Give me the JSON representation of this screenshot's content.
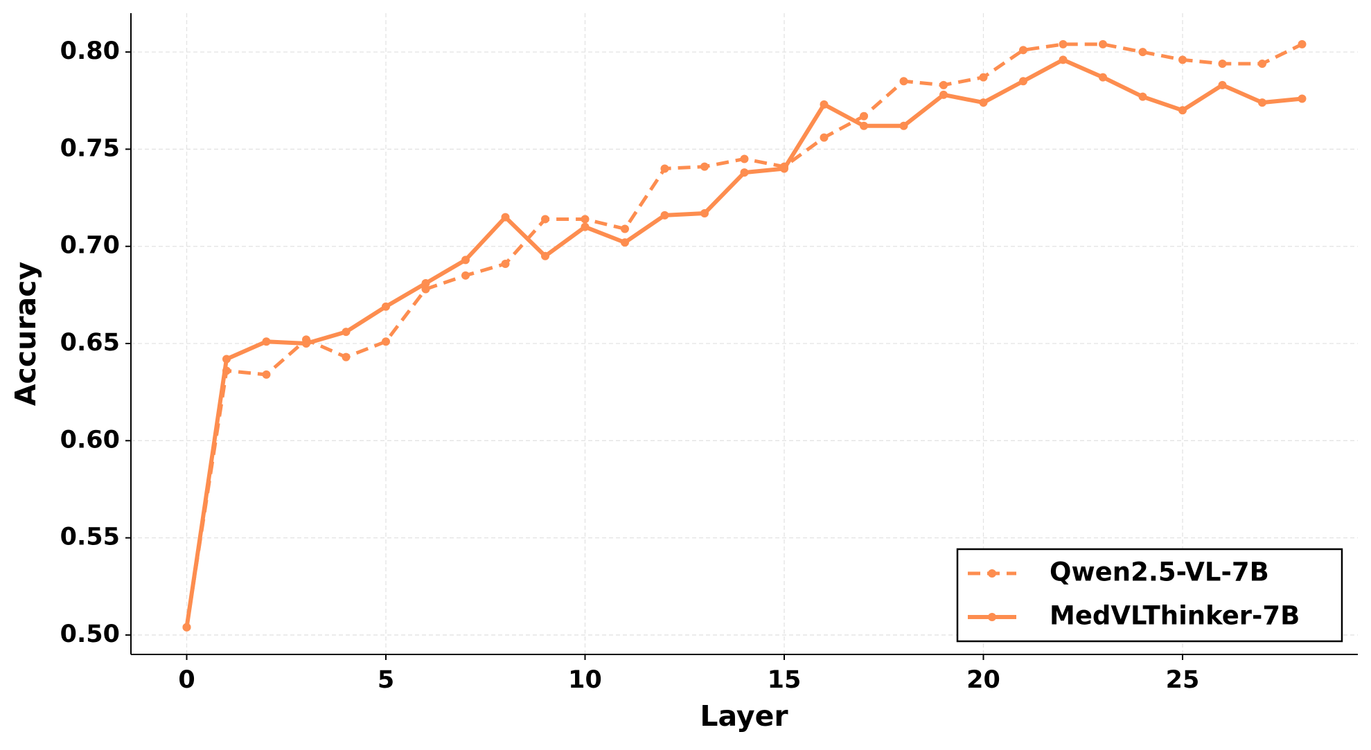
{
  "chart_data": {
    "type": "line",
    "x_label": "Layer",
    "y_label": "Accuracy",
    "x": [
      0,
      1,
      2,
      3,
      4,
      5,
      6,
      7,
      8,
      9,
      10,
      11,
      12,
      13,
      14,
      15,
      16,
      17,
      18,
      19,
      20,
      21,
      22,
      23,
      24,
      25,
      26,
      27,
      28
    ],
    "series": [
      {
        "name": "Qwen2.5-VL-7B",
        "color": "#fd8d4f",
        "dashed": true,
        "values": [
          0.504,
          0.636,
          0.634,
          0.652,
          0.643,
          0.651,
          0.678,
          0.685,
          0.691,
          0.714,
          0.714,
          0.709,
          0.74,
          0.741,
          0.745,
          0.741,
          0.756,
          0.767,
          0.785,
          0.783,
          0.787,
          0.801,
          0.804,
          0.804,
          0.8,
          0.796,
          0.794,
          0.794,
          0.804
        ]
      },
      {
        "name": "MedVLThinker-7B",
        "color": "#fd8d4f",
        "dashed": false,
        "values": [
          0.504,
          0.642,
          0.651,
          0.65,
          0.656,
          0.669,
          0.681,
          0.693,
          0.715,
          0.695,
          0.71,
          0.702,
          0.716,
          0.717,
          0.738,
          0.74,
          0.773,
          0.762,
          0.762,
          0.778,
          0.774,
          0.785,
          0.796,
          0.787,
          0.777,
          0.77,
          0.783,
          0.774,
          0.776
        ]
      }
    ],
    "xlim": [
      -1.4,
      29.4
    ],
    "ylim": [
      0.49,
      0.82
    ],
    "xticks": [
      0,
      5,
      10,
      15,
      20,
      25
    ],
    "yticks": [
      {
        "value": 0.5,
        "label": "0.50"
      },
      {
        "value": 0.55,
        "label": "0.55"
      },
      {
        "value": 0.6,
        "label": "0.60"
      },
      {
        "value": 0.65,
        "label": "0.65"
      },
      {
        "value": 0.7,
        "label": "0.70"
      },
      {
        "value": 0.75,
        "label": "0.75"
      },
      {
        "value": 0.8,
        "label": "0.80"
      }
    ],
    "grid": true,
    "legend": "lower right"
  }
}
